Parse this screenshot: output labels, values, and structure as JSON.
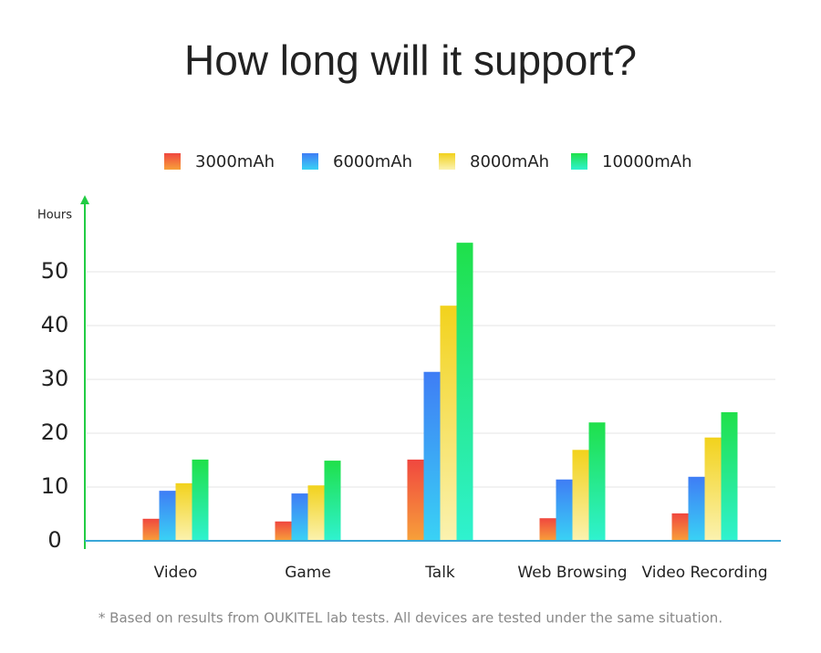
{
  "chart_data": {
    "type": "bar",
    "title": "How long will it support?",
    "y_label": "Hours",
    "footnote": "* Based on results from OUKITEL lab tests. All devices are tested under the same situation.",
    "categories": [
      "Video",
      "Game",
      "Talk",
      "Web Browsing",
      "Video Recording"
    ],
    "series": [
      {
        "name": "3000mAh",
        "color": "#f0473f",
        "values": [
          4.1,
          3.6,
          15.1,
          4.2,
          5.1
        ]
      },
      {
        "name": "6000mAh",
        "color": "#3f7df5",
        "values": [
          9.3,
          8.8,
          31.4,
          11.4,
          11.9
        ]
      },
      {
        "name": "8000mAh",
        "color": "#f2d21c",
        "values": [
          10.7,
          10.3,
          43.7,
          16.9,
          19.2
        ]
      },
      {
        "name": "10000mAh",
        "color": "#1fe04a",
        "values": [
          15.1,
          14.9,
          55.4,
          22.0,
          23.9
        ]
      }
    ],
    "ylim": [
      0,
      60
    ],
    "yticks": [
      0,
      10,
      20,
      30,
      40,
      50
    ],
    "grid": true
  }
}
